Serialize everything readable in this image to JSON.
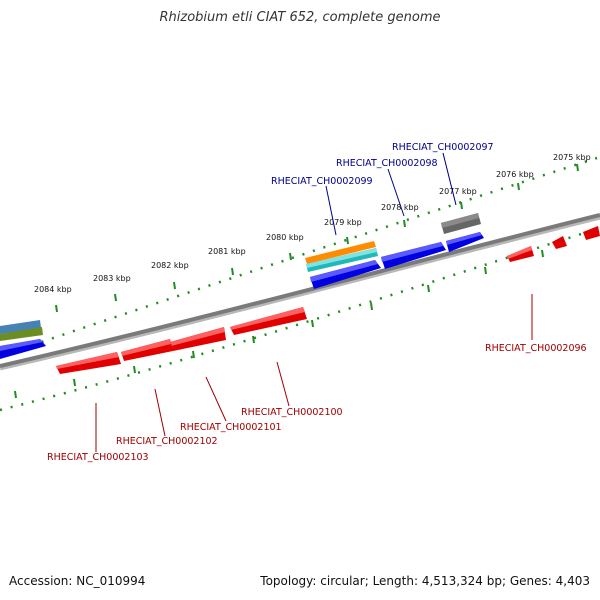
{
  "title": "Rhizobium etli CIAT 652, complete genome",
  "footer": {
    "accession_label": "Accession:",
    "accession_value": "NC_010994",
    "topology_label": "Topology:",
    "topology_value": "circular",
    "length_label": "Length:",
    "length_value": "4,513,324 bp",
    "genes_label": "Genes:",
    "genes_value": "4,403"
  },
  "ruler": {
    "unit": "kbp",
    "ticks": [
      {
        "label": "2075 kbp"
      },
      {
        "label": "2076 kbp"
      },
      {
        "label": "2077 kbp"
      },
      {
        "label": "2078 kbp"
      },
      {
        "label": "2079 kbp"
      },
      {
        "label": "2080 kbp"
      },
      {
        "label": "2081 kbp"
      },
      {
        "label": "2082 kbp"
      },
      {
        "label": "2083 kbp"
      },
      {
        "label": "2084 kbp"
      }
    ]
  },
  "gene_labels": {
    "forward": [
      {
        "name": "RHECIAT_CH0002097"
      },
      {
        "name": "RHECIAT_CH0002098"
      },
      {
        "name": "RHECIAT_CH0002099"
      }
    ],
    "reverse": [
      {
        "name": "RHECIAT_CH0002096"
      },
      {
        "name": "RHECIAT_CH0002100"
      },
      {
        "name": "RHECIAT_CH0002101"
      },
      {
        "name": "RHECIAT_CH0002102"
      },
      {
        "name": "RHECIAT_CH0002103"
      }
    ]
  },
  "colors": {
    "forward_gene": "#0000e0",
    "reverse_gene": "#e00000",
    "forward_label": "#00008b",
    "reverse_label": "#a00000",
    "backbone": "#777777",
    "ruler_tick": "#228b22",
    "other_gene": "#666666",
    "feature_orange": "#ff8c00",
    "feature_cyan": "#20c0c0",
    "feature_steel": "#4682b4",
    "feature_olive": "#6b8e23"
  }
}
